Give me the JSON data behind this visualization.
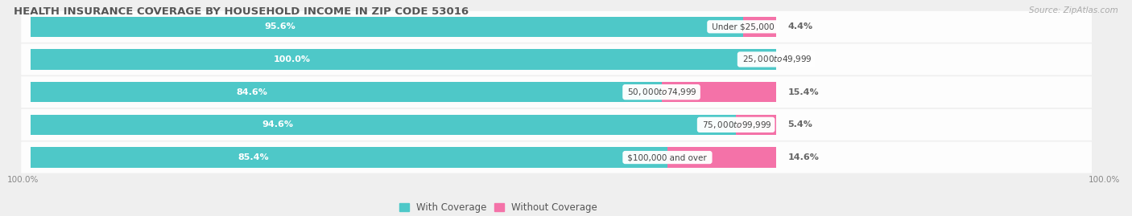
{
  "title": "HEALTH INSURANCE COVERAGE BY HOUSEHOLD INCOME IN ZIP CODE 53016",
  "source": "Source: ZipAtlas.com",
  "categories": [
    "Under $25,000",
    "$25,000 to $49,999",
    "$50,000 to $74,999",
    "$75,000 to $99,999",
    "$100,000 and over"
  ],
  "with_coverage": [
    95.6,
    100.0,
    84.6,
    94.6,
    85.4
  ],
  "without_coverage": [
    4.4,
    0.0,
    15.4,
    5.4,
    14.6
  ],
  "color_with": "#4EC8C8",
  "color_without": "#F472A8",
  "bg_color": "#efefef",
  "row_bg": "#ffffff",
  "label_color_with": "#ffffff",
  "title_color": "#555555",
  "source_color": "#aaaaaa",
  "axis_label_color": "#888888",
  "legend_color_with": "#4EC8C8",
  "legend_color_without": "#F472A8",
  "total_width": 100.0,
  "xlim_left": -5,
  "xlim_right": 120
}
